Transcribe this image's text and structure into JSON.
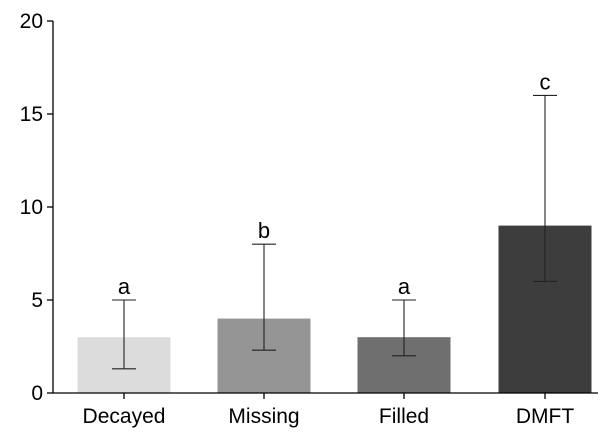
{
  "chart_data": {
    "type": "bar",
    "title": "",
    "xlabel": "",
    "ylabel": "",
    "categories": [
      "Decayed",
      "Missing",
      "Filled",
      "DMFT"
    ],
    "values": [
      3,
      4,
      3,
      9
    ],
    "error_low": [
      1.3,
      2.3,
      2.0,
      6.0
    ],
    "error_high": [
      5,
      8,
      5,
      16
    ],
    "significance_labels": [
      "a",
      "b",
      "a",
      "c"
    ],
    "bar_colors": [
      "#dcdcdc",
      "#959595",
      "#6f6f6f",
      "#3d3d3d"
    ],
    "ylim": [
      0,
      20
    ],
    "yticks": [
      0,
      5,
      10,
      15,
      20
    ],
    "ytick_labels": [
      "0",
      "5",
      "10",
      "15",
      "20"
    ],
    "grid": false,
    "legend": "none"
  }
}
